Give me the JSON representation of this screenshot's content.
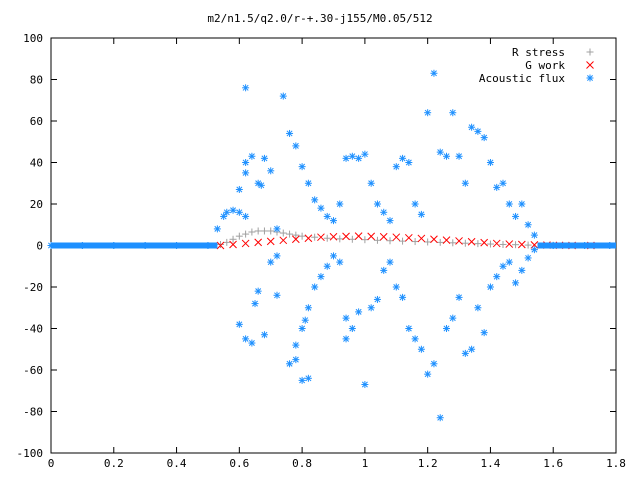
{
  "chart_data": {
    "type": "scatter",
    "title": "m2/n1.5/q2.0/r-+.30-j155/M0.05/512",
    "xlabel": "",
    "ylabel": "",
    "xlim": [
      0,
      1.8
    ],
    "ylim": [
      -100,
      100
    ],
    "x_ticks": [
      "0",
      "0.2",
      "0.4",
      "0.6",
      "0.8",
      "1",
      "1.2",
      "1.4",
      "1.6",
      "1.8"
    ],
    "y_ticks": [
      "100",
      "80",
      "60",
      "40",
      "20",
      "0",
      "-20",
      "-40",
      "-60",
      "-80",
      "-100"
    ],
    "grid": false,
    "legend_position": "top-right",
    "series": [
      {
        "name": "R stress",
        "marker": "+",
        "color": "#a0a0a0",
        "points": [
          [
            0.0,
            0
          ],
          [
            0.1,
            0
          ],
          [
            0.2,
            0
          ],
          [
            0.3,
            0
          ],
          [
            0.4,
            0
          ],
          [
            0.5,
            0
          ],
          [
            0.54,
            0.5
          ],
          [
            0.56,
            1.5
          ],
          [
            0.58,
            3
          ],
          [
            0.6,
            4.5
          ],
          [
            0.62,
            5.5
          ],
          [
            0.64,
            6.5
          ],
          [
            0.66,
            7
          ],
          [
            0.68,
            7
          ],
          [
            0.7,
            7
          ],
          [
            0.72,
            6.5
          ],
          [
            0.74,
            6
          ],
          [
            0.76,
            5.5
          ],
          [
            0.78,
            5
          ],
          [
            0.8,
            4.5
          ],
          [
            0.84,
            4
          ],
          [
            0.88,
            3.5
          ],
          [
            0.92,
            3.2
          ],
          [
            0.96,
            3
          ],
          [
            1.0,
            2.8
          ],
          [
            1.04,
            2.5
          ],
          [
            1.08,
            2.3
          ],
          [
            1.12,
            2.1
          ],
          [
            1.16,
            1.9
          ],
          [
            1.2,
            1.7
          ],
          [
            1.24,
            1.5
          ],
          [
            1.28,
            1.3
          ],
          [
            1.32,
            1.1
          ],
          [
            1.36,
            0.9
          ],
          [
            1.4,
            0.7
          ],
          [
            1.44,
            0.5
          ],
          [
            1.48,
            0.4
          ],
          [
            1.52,
            0.2
          ],
          [
            1.6,
            0.1
          ],
          [
            1.7,
            0
          ],
          [
            1.78,
            0
          ]
        ]
      },
      {
        "name": "G work",
        "marker": "x",
        "color": "#ff0000",
        "points": [
          [
            0.54,
            0
          ],
          [
            0.58,
            0.5
          ],
          [
            0.62,
            1
          ],
          [
            0.66,
            1.5
          ],
          [
            0.7,
            2
          ],
          [
            0.74,
            2.5
          ],
          [
            0.78,
            3
          ],
          [
            0.82,
            3.5
          ],
          [
            0.86,
            4
          ],
          [
            0.9,
            4.2
          ],
          [
            0.94,
            4.4
          ],
          [
            0.98,
            4.5
          ],
          [
            1.02,
            4.4
          ],
          [
            1.06,
            4.2
          ],
          [
            1.1,
            4
          ],
          [
            1.14,
            3.7
          ],
          [
            1.18,
            3.4
          ],
          [
            1.22,
            3
          ],
          [
            1.26,
            2.6
          ],
          [
            1.3,
            2.2
          ],
          [
            1.34,
            1.8
          ],
          [
            1.38,
            1.4
          ],
          [
            1.42,
            1
          ],
          [
            1.46,
            0.7
          ],
          [
            1.5,
            0.5
          ],
          [
            1.54,
            0.3
          ],
          [
            1.58,
            0.2
          ],
          [
            1.62,
            0.1
          ],
          [
            1.66,
            0
          ],
          [
            1.72,
            0
          ]
        ]
      },
      {
        "name": "Acoustic flux",
        "marker": "*",
        "color": "#1e90ff",
        "points": [
          [
            0.0,
            0
          ],
          [
            0.1,
            0
          ],
          [
            0.2,
            0
          ],
          [
            0.3,
            0
          ],
          [
            0.4,
            0
          ],
          [
            0.5,
            0
          ],
          [
            0.53,
            8
          ],
          [
            0.55,
            14
          ],
          [
            0.56,
            16
          ],
          [
            0.58,
            17
          ],
          [
            0.6,
            16
          ],
          [
            0.62,
            14
          ],
          [
            0.6,
            -38
          ],
          [
            0.62,
            -45
          ],
          [
            0.64,
            -47
          ],
          [
            0.65,
            -28
          ],
          [
            0.66,
            -22
          ],
          [
            0.68,
            -43
          ],
          [
            0.62,
            40
          ],
          [
            0.64,
            43
          ],
          [
            0.66,
            30
          ],
          [
            0.67,
            29
          ],
          [
            0.68,
            42
          ],
          [
            0.7,
            36
          ],
          [
            0.6,
            27
          ],
          [
            0.62,
            35
          ],
          [
            0.62,
            76
          ],
          [
            0.7,
            -8
          ],
          [
            0.72,
            -5
          ],
          [
            0.72,
            8
          ],
          [
            0.72,
            -24
          ],
          [
            0.74,
            72
          ],
          [
            0.76,
            54
          ],
          [
            0.76,
            -57
          ],
          [
            0.78,
            -55
          ],
          [
            0.8,
            -65
          ],
          [
            0.82,
            -64
          ],
          [
            0.78,
            48
          ],
          [
            0.78,
            -48
          ],
          [
            0.8,
            -40
          ],
          [
            0.81,
            -36
          ],
          [
            0.82,
            -30
          ],
          [
            0.84,
            -20
          ],
          [
            0.86,
            -15
          ],
          [
            0.88,
            -10
          ],
          [
            0.9,
            -5
          ],
          [
            0.92,
            -8
          ],
          [
            0.94,
            -35
          ],
          [
            0.94,
            -45
          ],
          [
            0.96,
            -40
          ],
          [
            0.98,
            -32
          ],
          [
            1.0,
            -67
          ],
          [
            1.02,
            -30
          ],
          [
            1.04,
            -26
          ],
          [
            1.06,
            -12
          ],
          [
            1.08,
            -8
          ],
          [
            0.8,
            38
          ],
          [
            0.82,
            30
          ],
          [
            0.84,
            22
          ],
          [
            0.86,
            18
          ],
          [
            0.88,
            14
          ],
          [
            0.9,
            12
          ],
          [
            0.92,
            20
          ],
          [
            0.94,
            42
          ],
          [
            0.96,
            43
          ],
          [
            0.98,
            42
          ],
          [
            1.0,
            44
          ],
          [
            1.02,
            30
          ],
          [
            1.04,
            20
          ],
          [
            1.06,
            16
          ],
          [
            1.08,
            12
          ],
          [
            1.1,
            38
          ],
          [
            1.12,
            42
          ],
          [
            1.14,
            40
          ],
          [
            1.16,
            20
          ],
          [
            1.18,
            15
          ],
          [
            1.2,
            64
          ],
          [
            1.22,
            83
          ],
          [
            1.24,
            45
          ],
          [
            1.26,
            43
          ],
          [
            1.28,
            64
          ],
          [
            1.3,
            43
          ],
          [
            1.32,
            30
          ],
          [
            1.34,
            57
          ],
          [
            1.36,
            55
          ],
          [
            1.38,
            52
          ],
          [
            1.4,
            40
          ],
          [
            1.42,
            28
          ],
          [
            1.44,
            30
          ],
          [
            1.46,
            20
          ],
          [
            1.48,
            14
          ],
          [
            1.5,
            20
          ],
          [
            1.52,
            10
          ],
          [
            1.54,
            5
          ],
          [
            1.1,
            -20
          ],
          [
            1.12,
            -25
          ],
          [
            1.14,
            -40
          ],
          [
            1.16,
            -45
          ],
          [
            1.18,
            -50
          ],
          [
            1.2,
            -62
          ],
          [
            1.22,
            -57
          ],
          [
            1.24,
            -83
          ],
          [
            1.26,
            -40
          ],
          [
            1.28,
            -35
          ],
          [
            1.3,
            -25
          ],
          [
            1.32,
            -52
          ],
          [
            1.34,
            -50
          ],
          [
            1.36,
            -30
          ],
          [
            1.38,
            -42
          ],
          [
            1.4,
            -20
          ],
          [
            1.42,
            -15
          ],
          [
            1.44,
            -10
          ],
          [
            1.46,
            -8
          ],
          [
            1.48,
            -18
          ],
          [
            1.5,
            -12
          ],
          [
            1.52,
            -6
          ],
          [
            1.54,
            -2
          ],
          [
            1.6,
            0
          ],
          [
            1.7,
            0
          ],
          [
            1.78,
            0
          ]
        ]
      }
    ]
  }
}
